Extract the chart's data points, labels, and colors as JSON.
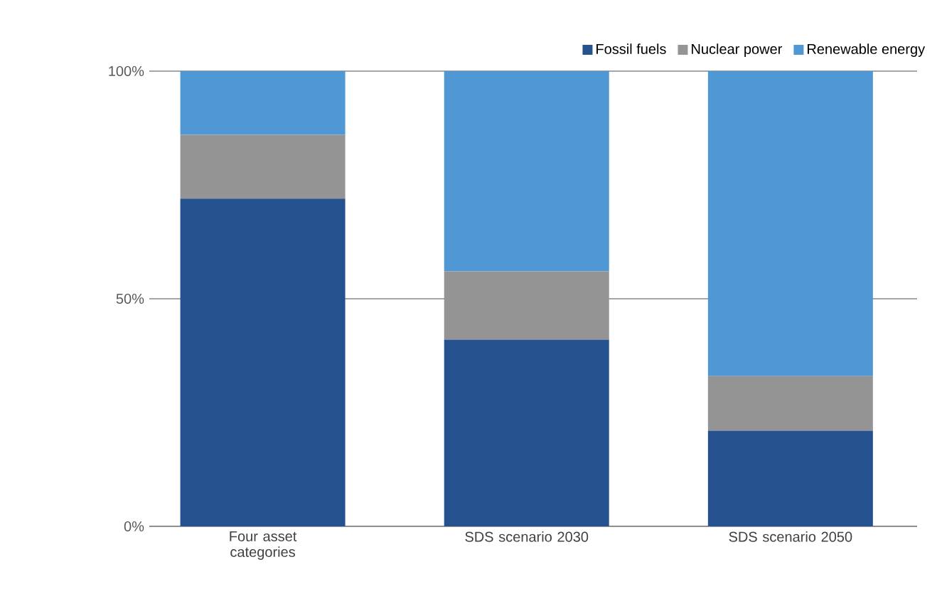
{
  "chart_data": {
    "type": "bar",
    "stacked": true,
    "categories": [
      "Four asset categories",
      "SDS scenario 2030",
      "SDS scenario 2050"
    ],
    "series": [
      {
        "name": "Fossil fuels",
        "color": "#26518f",
        "values": [
          72,
          41,
          21
        ]
      },
      {
        "name": "Nuclear power",
        "color": "#949494",
        "values": [
          14,
          15,
          12
        ]
      },
      {
        "name": "Renewable energy",
        "color": "#4f98d4",
        "values": [
          14,
          44,
          67
        ]
      }
    ],
    "ylim": [
      0,
      100
    ],
    "yticks": [
      {
        "value": 0,
        "label": "0%"
      },
      {
        "value": 50,
        "label": "50%"
      },
      {
        "value": 100,
        "label": "100%"
      }
    ],
    "grid": "y",
    "legend": "top right"
  }
}
